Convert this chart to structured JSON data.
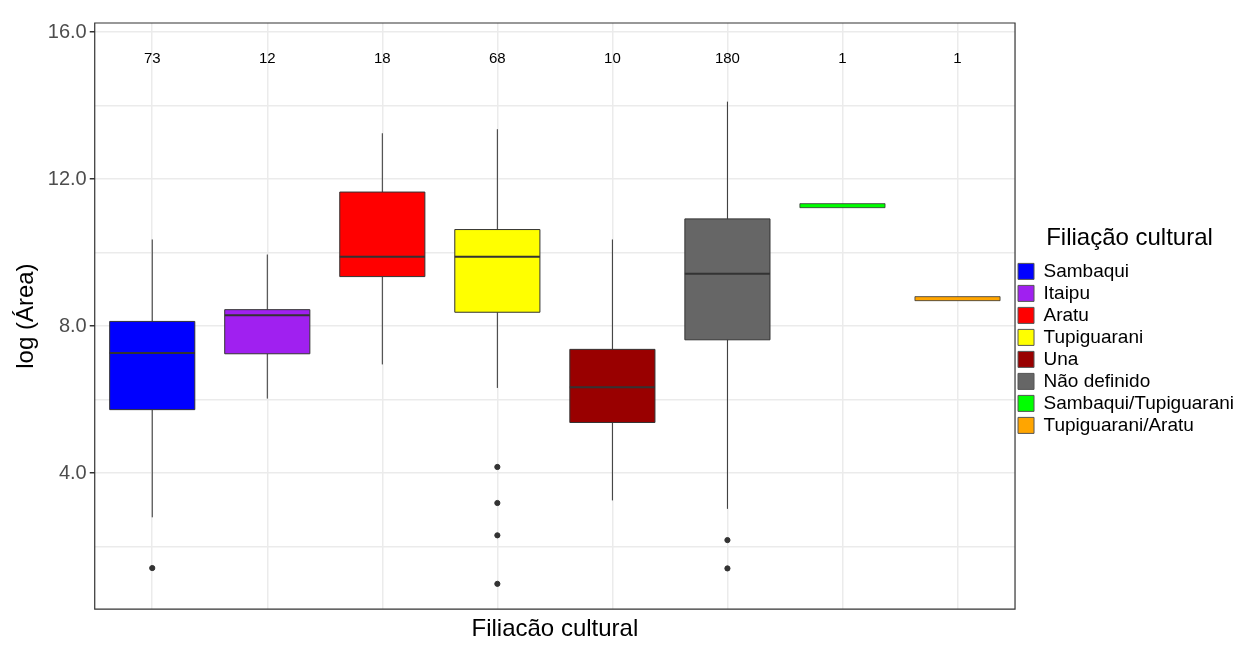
{
  "chart_data": {
    "type": "box",
    "xlabel": "Filiacão cultural",
    "ylabel": "log (Área)",
    "legend_title": "Filiação cultural",
    "categories": [
      null,
      null,
      null,
      null,
      null,
      null,
      null,
      null
    ],
    "series": [
      {
        "name": "Sambaqui",
        "color": "#0000ff",
        "boxes": [
          {
            "low": 2.8,
            "q1": 5.73,
            "median": 7.27,
            "q3": 8.13,
            "high": 10.36,
            "outliers": [
              1.42
            ]
          },
          null,
          null,
          null,
          null,
          null,
          null,
          null
        ]
      },
      {
        "name": "Itaipu",
        "color": "#a020f0",
        "boxes": [
          null,
          {
            "low": 6.03,
            "q1": 7.25,
            "median": 8.3,
            "q3": 8.45,
            "high": 9.95
          },
          null,
          null,
          null,
          null,
          null,
          null
        ]
      },
      {
        "name": "Aratu",
        "color": "#ff0000",
        "boxes": [
          null,
          null,
          {
            "low": 6.96,
            "q1": 9.35,
            "median": 9.89,
            "q3": 11.65,
            "high": 13.25
          },
          null,
          null,
          null,
          null,
          null
        ]
      },
      {
        "name": "Tupiguarani",
        "color": "#ffff00",
        "boxes": [
          null,
          null,
          null,
          {
            "low": 6.32,
            "q1": 8.38,
            "median": 9.89,
            "q3": 10.63,
            "high": 13.36,
            "outliers": [
              4.17,
              3.19,
              2.31,
              0.99
            ]
          },
          null,
          null,
          null,
          null
        ]
      },
      {
        "name": "Una",
        "color": "#990000",
        "boxes": [
          null,
          null,
          null,
          null,
          {
            "low": 3.26,
            "q1": 5.38,
            "median": 6.34,
            "q3": 7.37,
            "high": 10.36
          },
          null,
          null,
          null
        ]
      },
      {
        "name": "Não definido",
        "color": "#666666",
        "boxes": [
          null,
          null,
          null,
          null,
          null,
          {
            "low": 3.03,
            "q1": 7.63,
            "median": 9.43,
            "q3": 10.92,
            "high": 14.11,
            "outliers": [
              2.18,
              1.41
            ]
          },
          null,
          null
        ]
      },
      {
        "name": "Sambaqui/Tupiguarani",
        "color": "#00ff00",
        "boxes": [
          null,
          null,
          null,
          null,
          null,
          null,
          {
            "low": 11.28,
            "q1": 11.28,
            "median": 11.28,
            "q3": 11.28,
            "high": 11.28
          },
          null
        ]
      },
      {
        "name": "Tupiguarani/Aratu",
        "color": "#ffa500",
        "boxes": [
          null,
          null,
          null,
          null,
          null,
          null,
          null,
          {
            "low": 8.75,
            "q1": 8.75,
            "median": 8.75,
            "q3": 8.75,
            "high": 8.75
          }
        ]
      }
    ],
    "annotations": [
      "73",
      "12",
      "18",
      "68",
      "10",
      "180",
      "1",
      "1"
    ],
    "ylim": [
      0.3,
      16.25
    ],
    "yticks": [
      {
        "value": 2,
        "label": null
      },
      {
        "value": 4,
        "label": "4.0"
      },
      {
        "value": 6,
        "label": null
      },
      {
        "value": 8,
        "label": "8.0"
      },
      {
        "value": 10,
        "label": null
      },
      {
        "value": 12,
        "label": "12.0"
      },
      {
        "value": 14,
        "label": null
      },
      {
        "value": 16,
        "label": "16.0"
      }
    ],
    "grid": true,
    "legend": "right",
    "tick_labels": "y"
  }
}
